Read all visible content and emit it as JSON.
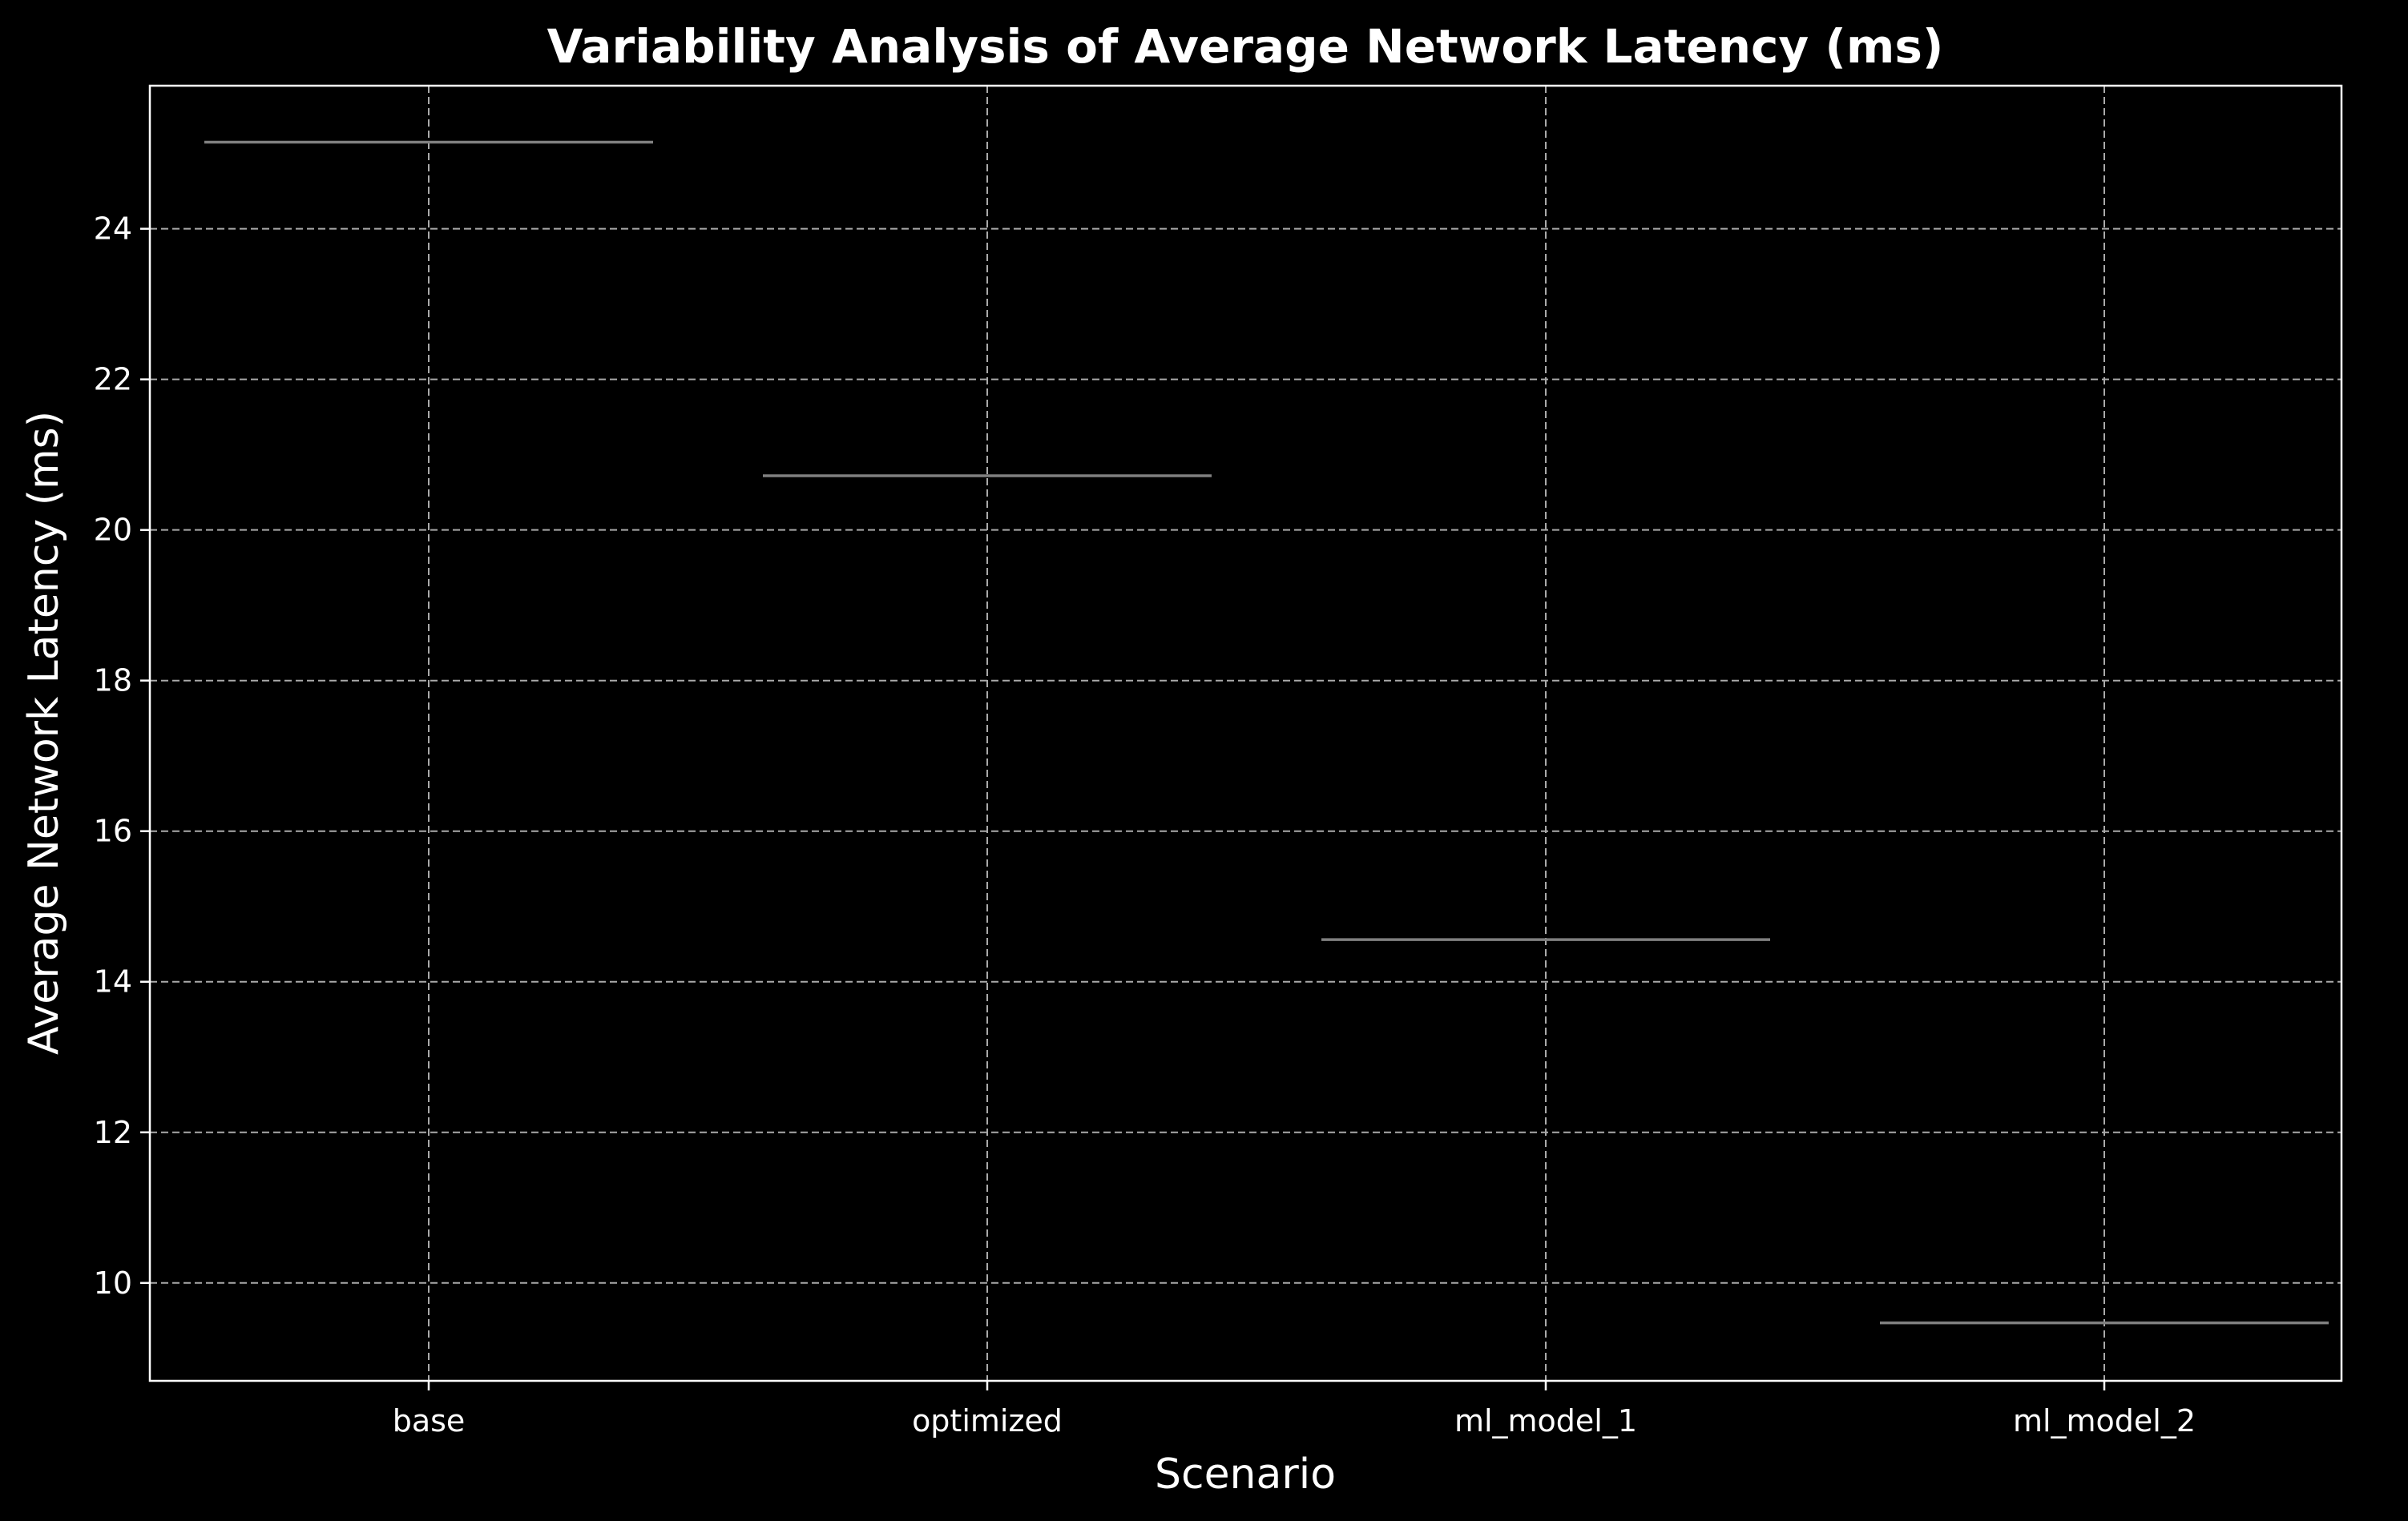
{
  "chart_data": {
    "type": "violin",
    "title": "Variability Analysis of Average Network Latency (ms)",
    "xlabel": "Scenario",
    "ylabel": "Average Network Latency (ms)",
    "categories": [
      "base",
      "optimized",
      "ml_model_1",
      "ml_model_2"
    ],
    "values": [
      25.15,
      20.72,
      14.56,
      9.47
    ],
    "ylim": [
      8.7,
      25.9
    ],
    "yticks": [
      10,
      12,
      14,
      16,
      18,
      20,
      22,
      24
    ],
    "grid": true,
    "colors": {
      "background": "#000000",
      "foreground": "#ffffff",
      "grid": "#aaaaaa",
      "mark": "#808080"
    }
  }
}
